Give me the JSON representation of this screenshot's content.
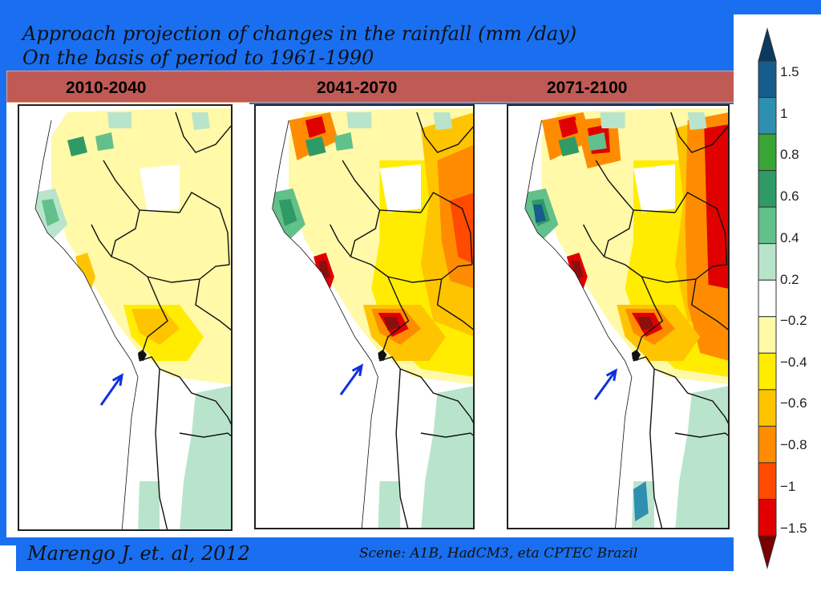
{
  "slide": {
    "title_line1": "Approach projection of changes in the rainfall (mm /day)",
    "title_line2": "On the basis of period to 1961-1990"
  },
  "periods": [
    "2010-2040",
    "2041-2070",
    "2071-2100"
  ],
  "footer": {
    "author": "Marengo J. et. al, 2012",
    "scene": "Scene: A1B, HadCM3, eta CPTEC Brazil"
  },
  "legend": {
    "ticks": [
      "1.5",
      "1",
      "0.8",
      "0.6",
      "0.4",
      "0.2",
      "−0.2",
      "−0.4",
      "−0.6",
      "−0.8",
      "−1",
      "−1.5"
    ],
    "colors": [
      "#0b3a5e",
      "#165c8c",
      "#2f8fb0",
      "#38a535",
      "#2f9a66",
      "#62c08a",
      "#b9e4cc",
      "#ffffff",
      "#fff9a8",
      "#ffec00",
      "#ffc400",
      "#ff8c00",
      "#ff4a00",
      "#e00000",
      "#7a0000"
    ]
  },
  "palette": {
    "slide_blue": "#1a6ff0",
    "period_bar": "#c05a55",
    "arrow": "#1030e0"
  }
}
